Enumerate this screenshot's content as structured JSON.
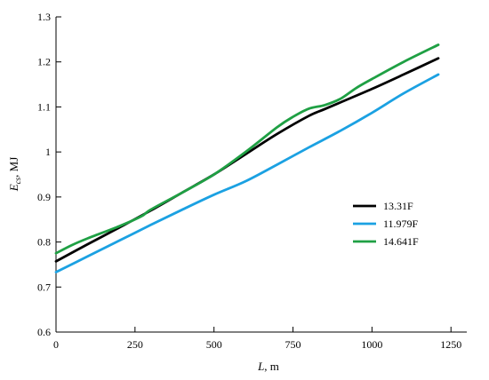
{
  "chart_data": {
    "type": "line",
    "xlabel": {
      "var": "L",
      "unit": ", m"
    },
    "ylabel": {
      "var": "E",
      "sub": "cs",
      "unit": ", MJ"
    },
    "xlim": [
      0,
      1300
    ],
    "ylim": [
      0.6,
      1.3
    ],
    "x_ticks": [
      0,
      250,
      500,
      750,
      1000,
      1250
    ],
    "y_ticks": [
      0.6,
      0.7,
      0.8,
      0.9,
      1,
      1.1,
      1.2,
      1.3
    ],
    "x_tick_labels": [
      "0",
      "250",
      "500",
      "750",
      "1000",
      "1250"
    ],
    "y_tick_labels": [
      "0.6",
      "0.7",
      "0.8",
      "0.9",
      "1",
      "1.1",
      "1.2",
      "1.3"
    ],
    "legend_position": "right",
    "series": [
      {
        "name": "13.31F",
        "color": "#000000",
        "x": [
          0,
          100,
          200,
          300,
          400,
          500,
          600,
          700,
          800,
          850,
          900,
          1000,
          1100,
          1210
        ],
        "y": [
          0.757,
          0.795,
          0.832,
          0.87,
          0.91,
          0.95,
          0.995,
          1.04,
          1.08,
          1.095,
          1.11,
          1.14,
          1.172,
          1.208
        ]
      },
      {
        "name": "11.979F",
        "color": "#1ba1e2",
        "x": [
          0,
          100,
          200,
          300,
          400,
          500,
          600,
          700,
          800,
          900,
          1000,
          1100,
          1210
        ],
        "y": [
          0.733,
          0.768,
          0.803,
          0.838,
          0.872,
          0.905,
          0.935,
          0.972,
          1.01,
          1.047,
          1.087,
          1.13,
          1.172
        ]
      },
      {
        "name": "14.641F",
        "color": "#1fa044",
        "x": [
          0,
          50,
          100,
          200,
          270,
          300,
          400,
          500,
          600,
          700,
          750,
          800,
          850,
          900,
          950,
          1000,
          1100,
          1210
        ],
        "y": [
          0.775,
          0.793,
          0.808,
          0.835,
          0.857,
          0.872,
          0.91,
          0.95,
          1.0,
          1.055,
          1.078,
          1.096,
          1.104,
          1.118,
          1.142,
          1.162,
          1.2,
          1.238
        ]
      }
    ]
  }
}
